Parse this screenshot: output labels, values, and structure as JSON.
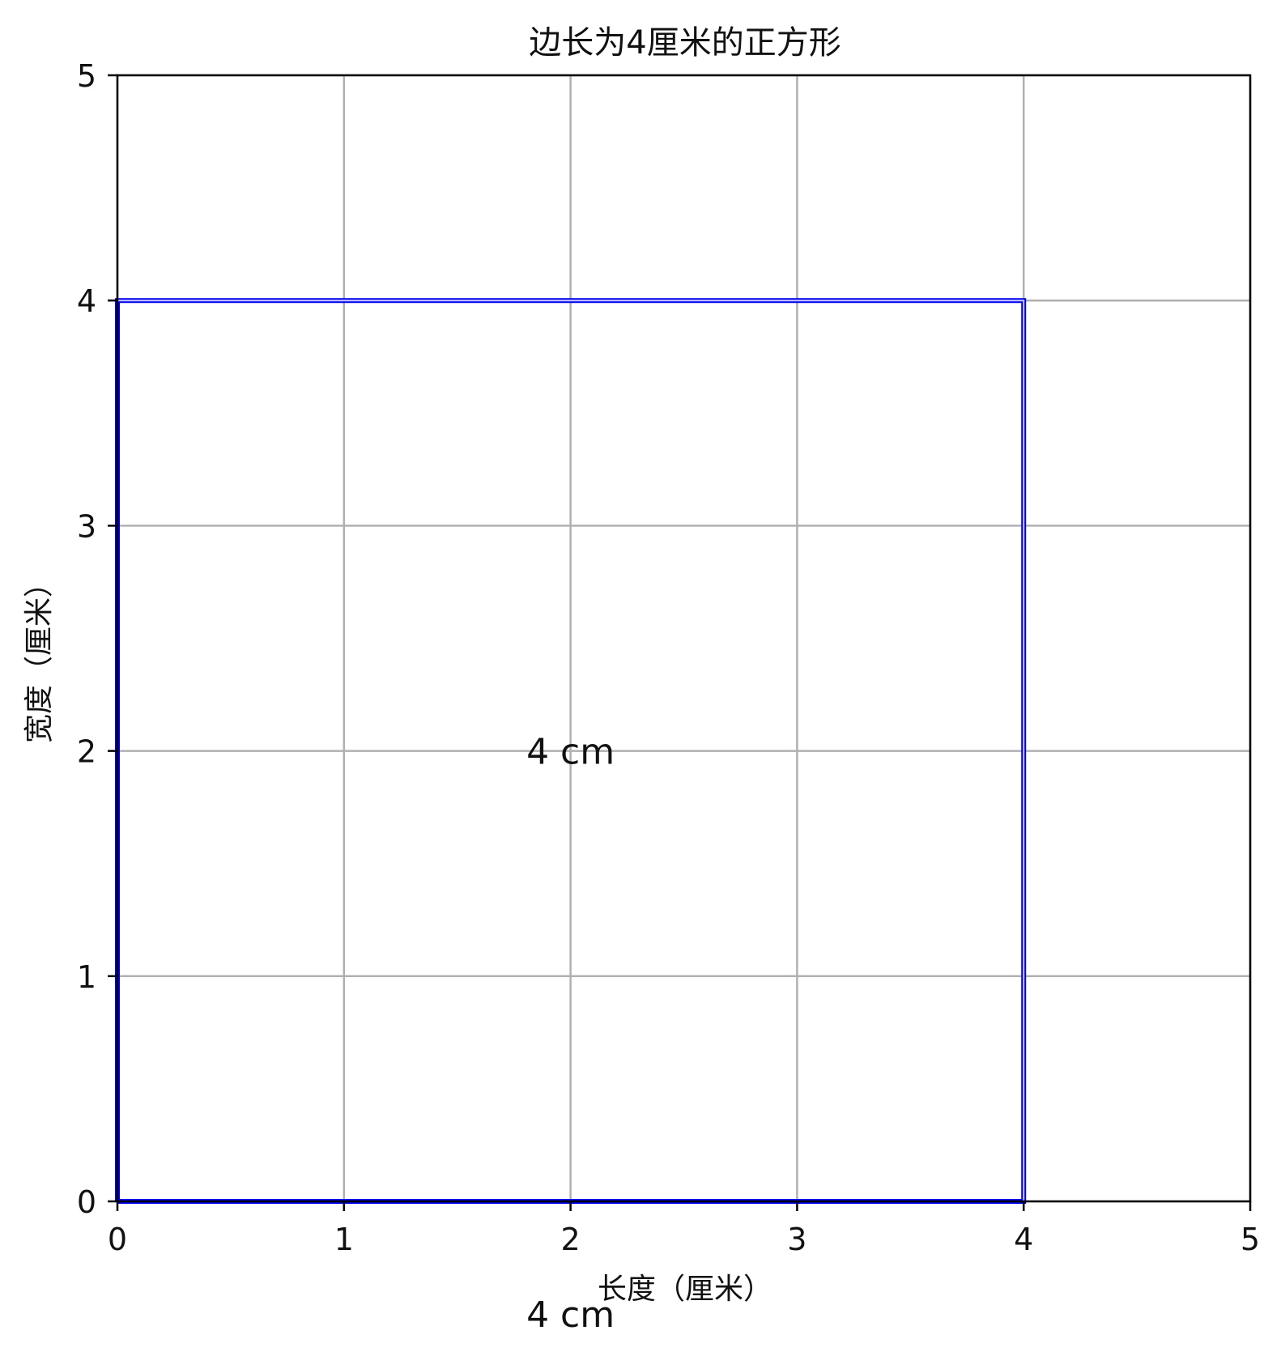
{
  "chart_data": {
    "type": "line",
    "title": "边长为4厘米的正方形",
    "xlabel": "长度（厘米）",
    "ylabel": "宽度（厘米）",
    "xlim": [
      0,
      5
    ],
    "ylim": [
      0,
      5
    ],
    "xticks": [
      0,
      1,
      2,
      3,
      4,
      5
    ],
    "yticks": [
      0,
      1,
      2,
      3,
      4,
      5
    ],
    "grid": true,
    "series": [
      {
        "x": [
          0,
          4,
          4,
          0,
          0
        ],
        "y": [
          0,
          0,
          4,
          4,
          0
        ],
        "color": "#0000ee",
        "fill": "none"
      }
    ],
    "annotations": [
      {
        "text": "4 cm",
        "x": 2,
        "y": 2
      },
      {
        "text": "4 cm",
        "x": 2,
        "y": -0.5
      }
    ]
  },
  "colors": {
    "square": "#0000ee",
    "grid": "#b0b0b0",
    "axes": "#000000"
  }
}
